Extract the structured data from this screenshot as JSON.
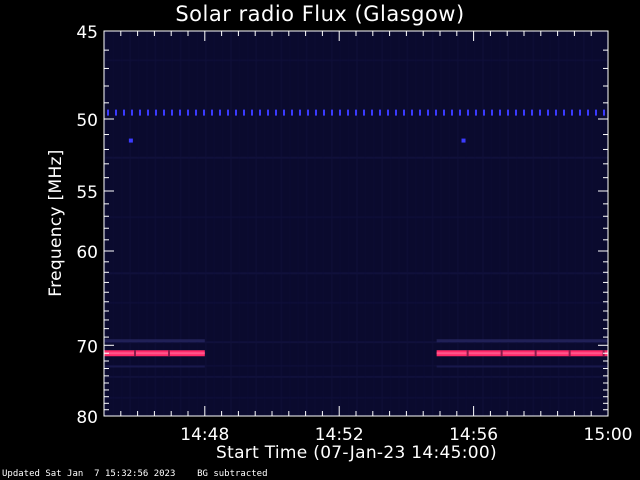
{
  "chart_data": {
    "type": "heatmap",
    "title": "Solar radio Flux (Glasgow)",
    "xlabel": "Start Time (07-Jan-23 14:45:00)",
    "ylabel": "Frequency [MHz]",
    "x_ticks": [
      "14:48",
      "14:52",
      "14:56",
      "15:00"
    ],
    "x_tick_minutes": [
      3,
      7,
      11,
      15
    ],
    "xlim_minutes": [
      0,
      15
    ],
    "y_ticks": [
      45,
      50,
      55,
      60,
      70,
      80
    ],
    "ylim": [
      45,
      80
    ],
    "y_scale": "reciprocal",
    "background_color": "#0a0a2e",
    "features": [
      {
        "name": "dotted-band",
        "frequency_mhz": 49.6,
        "start_minute": 0,
        "end_minute": 15,
        "color": "#3b3bff"
      },
      {
        "name": "strong-band-left",
        "frequency_mhz": 71.0,
        "start_minute": 0,
        "end_minute": 3,
        "color": "#ff2a6a"
      },
      {
        "name": "strong-band-right",
        "frequency_mhz": 71.0,
        "start_minute": 9.9,
        "end_minute": 15,
        "color": "#ff2a6a"
      },
      {
        "name": "blip-1",
        "frequency_mhz": 51.4,
        "minute": 0.8,
        "color": "#3b3bff"
      },
      {
        "name": "blip-2",
        "frequency_mhz": 51.4,
        "minute": 10.7,
        "color": "#3b3bff"
      }
    ]
  },
  "footer": {
    "updated": "Updated Sat Jan  7 15:32:56 2023",
    "mode": "BG subtracted"
  }
}
